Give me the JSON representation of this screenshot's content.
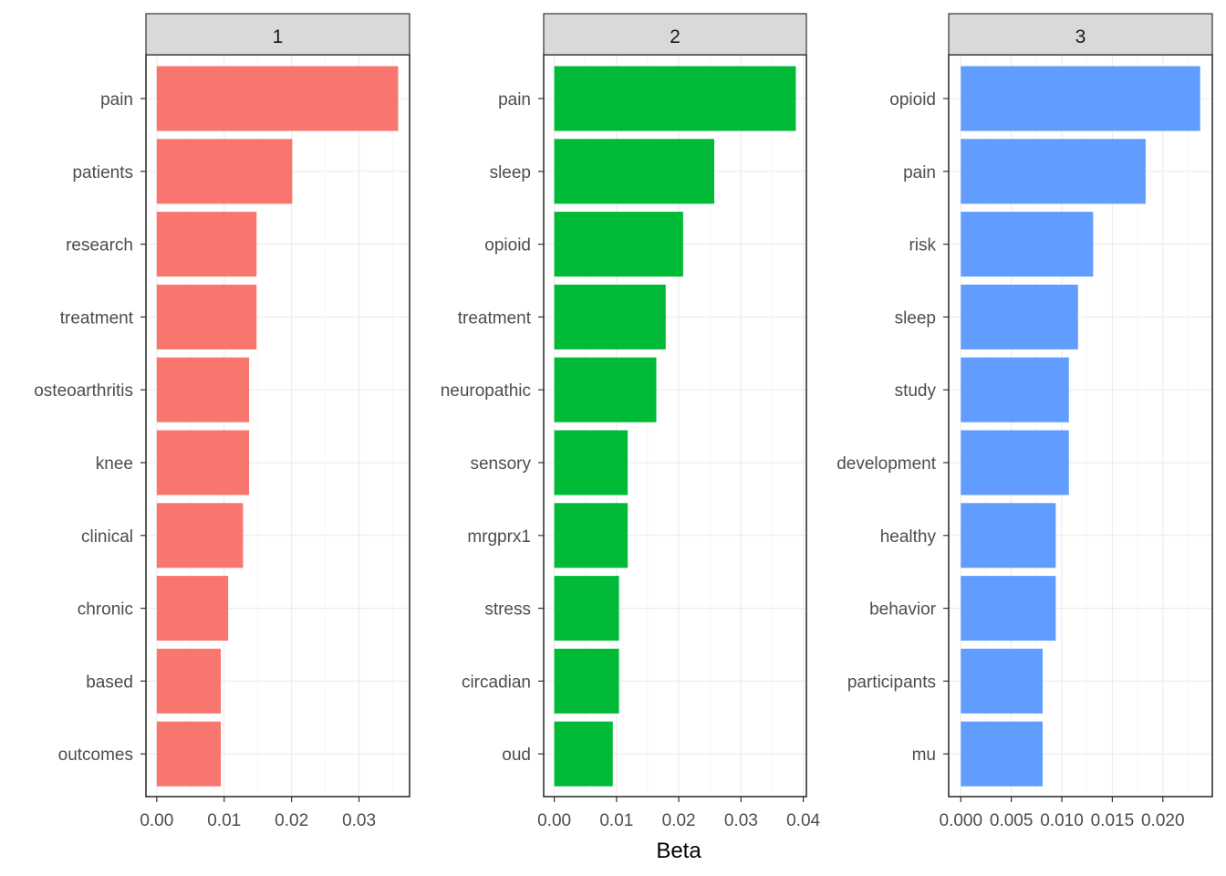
{
  "chart_data": {
    "type": "bar",
    "orientation": "horizontal",
    "xlabel": "Beta",
    "ylabel": "",
    "grid": true,
    "legend": "none",
    "facets": [
      {
        "strip_label": "1",
        "color": "#F8766D",
        "xlim": [
          -0.0016,
          0.0375
        ],
        "ticks": [
          0.0,
          0.01,
          0.02,
          0.03
        ],
        "tick_labels": [
          "0.00",
          "0.01",
          "0.02",
          "0.03"
        ],
        "categories": [
          "pain",
          "patients",
          "research",
          "treatment",
          "osteoarthritis",
          "knee",
          "clinical",
          "chronic",
          "based",
          "outcomes"
        ],
        "values": [
          0.0358,
          0.0201,
          0.0148,
          0.0148,
          0.0137,
          0.0137,
          0.0128,
          0.0106,
          0.0095,
          0.0095
        ]
      },
      {
        "strip_label": "2",
        "color": "#00BA38",
        "xlim": [
          -0.0017,
          0.0405
        ],
        "ticks": [
          0.0,
          0.01,
          0.02,
          0.03,
          0.04
        ],
        "tick_labels": [
          "0.00",
          "0.01",
          "0.02",
          "0.03",
          "0.04"
        ],
        "categories": [
          "pain",
          "sleep",
          "opioid",
          "treatment",
          "neuropathic",
          "sensory",
          "mrgprx1",
          "stress",
          "circadian",
          "oud"
        ],
        "values": [
          0.0388,
          0.0257,
          0.0207,
          0.0179,
          0.0164,
          0.0118,
          0.0118,
          0.0104,
          0.0104,
          0.0094
        ]
      },
      {
        "strip_label": "3",
        "color": "#619CFF",
        "xlim": [
          -0.0012,
          0.0249
        ],
        "ticks": [
          0.0,
          0.005,
          0.01,
          0.015,
          0.02
        ],
        "tick_labels": [
          "0.000",
          "0.005",
          "0.010",
          "0.015",
          "0.020"
        ],
        "categories": [
          "opioid",
          "pain",
          "risk",
          "sleep",
          "study",
          "development",
          "healthy",
          "behavior",
          "participants",
          "mu"
        ],
        "values": [
          0.0237,
          0.0183,
          0.0131,
          0.0116,
          0.0107,
          0.0107,
          0.0094,
          0.0094,
          0.0081,
          0.0081
        ]
      }
    ]
  }
}
